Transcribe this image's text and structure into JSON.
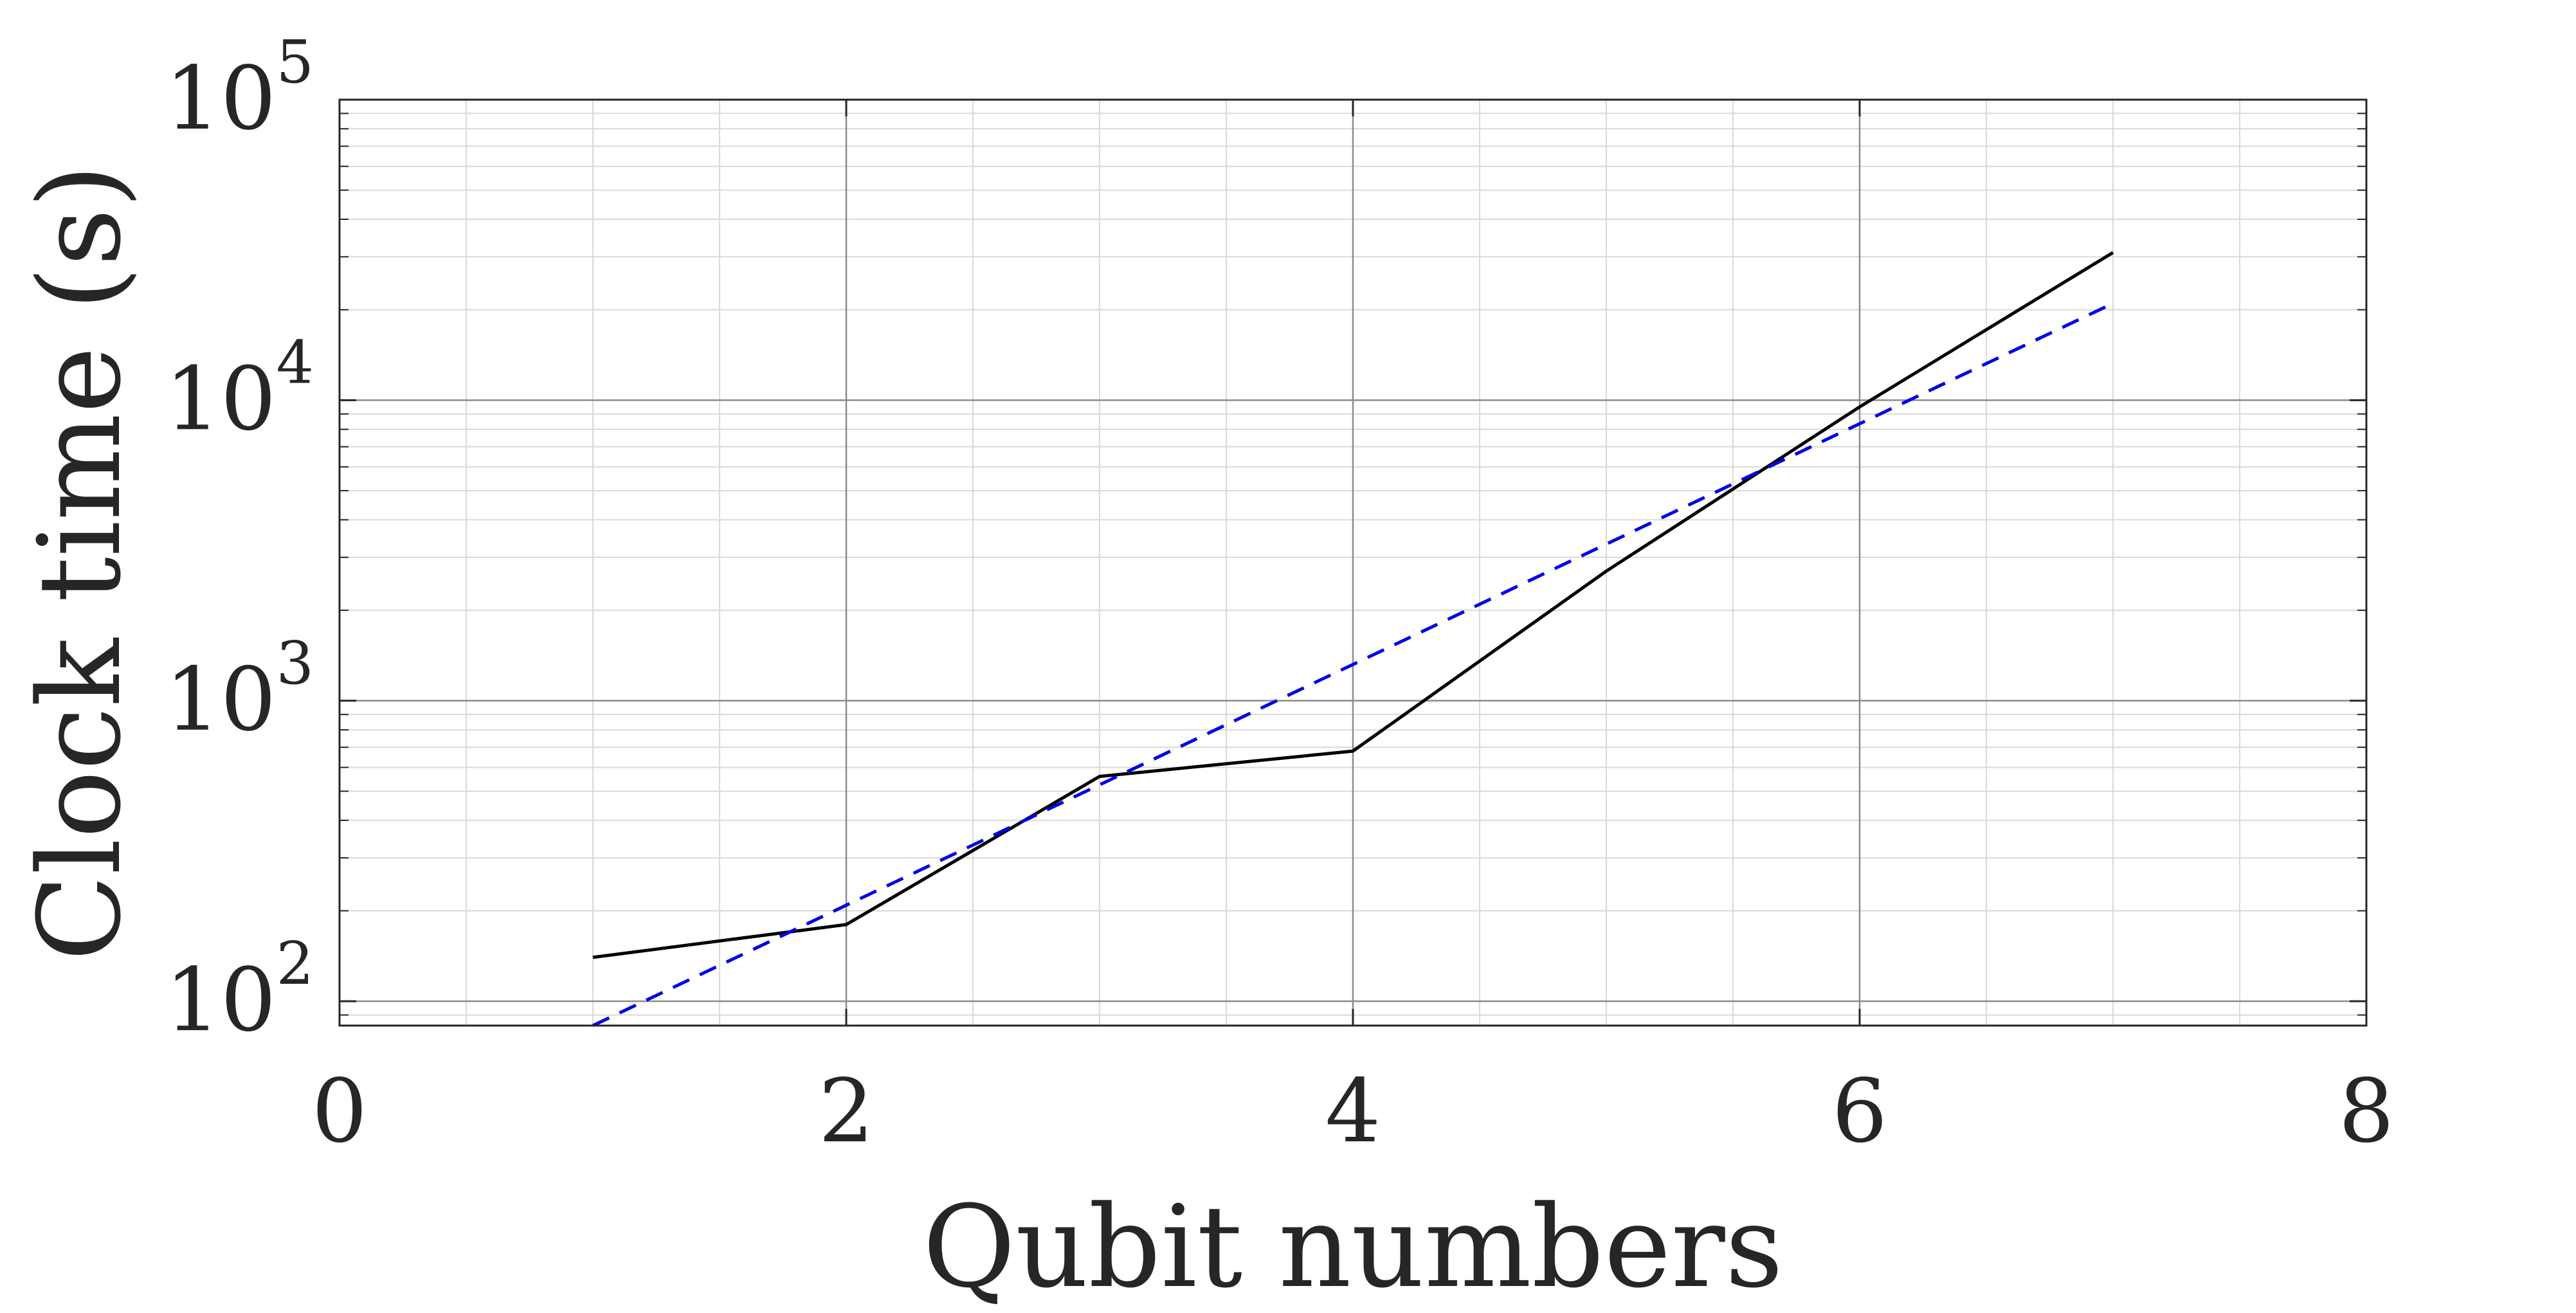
{
  "chart_data": {
    "type": "line",
    "title": "",
    "xlabel": "Qubit numbers",
    "ylabel": "Clock time (s)",
    "xlim": [
      0,
      8
    ],
    "ylim": [
      83,
      100000
    ],
    "yscale": "log",
    "grid": true,
    "minor_grid": true,
    "x_ticks": [
      {
        "value": 0,
        "label": "0"
      },
      {
        "value": 2,
        "label": "2"
      },
      {
        "value": 4,
        "label": "4"
      },
      {
        "value": 6,
        "label": "6"
      },
      {
        "value": 8,
        "label": "8"
      }
    ],
    "y_ticks": [
      {
        "value": 100,
        "base": "10",
        "exp": "2"
      },
      {
        "value": 1000,
        "base": "10",
        "exp": "3"
      },
      {
        "value": 10000,
        "base": "10",
        "exp": "4"
      },
      {
        "value": 100000,
        "base": "10",
        "exp": "5"
      }
    ],
    "series": [
      {
        "style": "solid",
        "color": "#000000",
        "x": [
          1,
          2,
          3,
          4,
          5,
          6,
          7
        ],
        "y": [
          140,
          180,
          560,
          680,
          2700,
          9500,
          31000
        ]
      },
      {
        "style": "dashed",
        "color": "#0000e6",
        "x": [
          1,
          7
        ],
        "y": [
          83,
          21000
        ]
      }
    ]
  }
}
